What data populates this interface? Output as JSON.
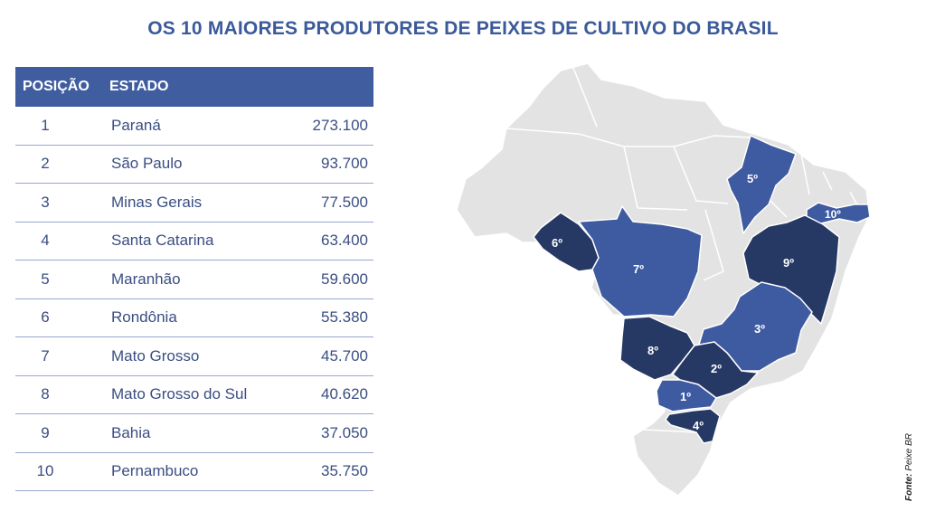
{
  "title": "OS 10 MAIORES PRODUTORES DE PEIXES DE CULTIVO DO BRASIL",
  "table": {
    "headers": {
      "position": "POSIÇÃO",
      "state": "ESTADO"
    },
    "rows": [
      {
        "position": "1",
        "state": "Paraná",
        "value": "273.100"
      },
      {
        "position": "2",
        "state": "São Paulo",
        "value": "93.700"
      },
      {
        "position": "3",
        "state": "Minas Gerais",
        "value": "77.500"
      },
      {
        "position": "4",
        "state": "Santa Catarina",
        "value": "63.400"
      },
      {
        "position": "5",
        "state": "Maranhão",
        "value": "59.600"
      },
      {
        "position": "6",
        "state": "Rondônia",
        "value": "55.380"
      },
      {
        "position": "7",
        "state": "Mato Grosso",
        "value": "45.700"
      },
      {
        "position": "8",
        "state": "Mato Grosso do Sul",
        "value": "40.620"
      },
      {
        "position": "9",
        "state": "Bahia",
        "value": "37.050"
      },
      {
        "position": "10",
        "state": "Pernambuco",
        "value": "35.750"
      }
    ]
  },
  "map": {
    "labels": {
      "pr": "1º",
      "sp": "2º",
      "mg": "3º",
      "sc": "4º",
      "ma": "5º",
      "ro": "6º",
      "mt": "7º",
      "ms": "8º",
      "ba": "9º",
      "pe": "10º"
    },
    "colors": {
      "dark": "#263864",
      "medium": "#3e5aa0",
      "other": "#e3e3e3",
      "border": "#ffffff"
    }
  },
  "source": {
    "label": "Fonte:",
    "name": "Peixe BR"
  }
}
